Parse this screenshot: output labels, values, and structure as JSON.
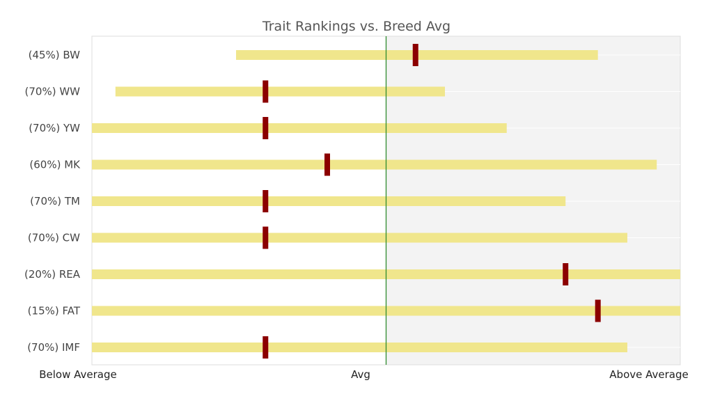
{
  "chart_data": {
    "type": "bar",
    "title": "Trait Rankings vs. Breed Avg",
    "x_tick_labels": [
      "Below Average",
      "Avg",
      "Above Average"
    ],
    "xlim": [
      -1,
      1
    ],
    "avg_line": 0,
    "grid": true,
    "categories": [
      "(45%) BW",
      "(70%) WW",
      "(70%) YW",
      "(60%) MK",
      "(70%) TM",
      "(70%) CW",
      "(20%) REA",
      "(15%) FAT",
      "(70%) IMF"
    ],
    "range_low": [
      -0.51,
      -0.92,
      -1.0,
      -1.0,
      -1.0,
      -1.0,
      -1.0,
      -1.0,
      -1.0
    ],
    "range_high": [
      0.72,
      0.2,
      0.41,
      0.92,
      0.61,
      0.82,
      1.0,
      1.0,
      0.82
    ],
    "values": [
      0.1,
      -0.41,
      -0.41,
      -0.2,
      -0.41,
      -0.41,
      0.61,
      0.72,
      -0.41
    ],
    "colors": {
      "range_bar": "#f0e68c",
      "marker": "#8b0000",
      "avg_line": "#2e8b2e",
      "right_panel": "#f3f3f3",
      "grid": "#ffffff",
      "axes_border": "#dddddd"
    }
  }
}
